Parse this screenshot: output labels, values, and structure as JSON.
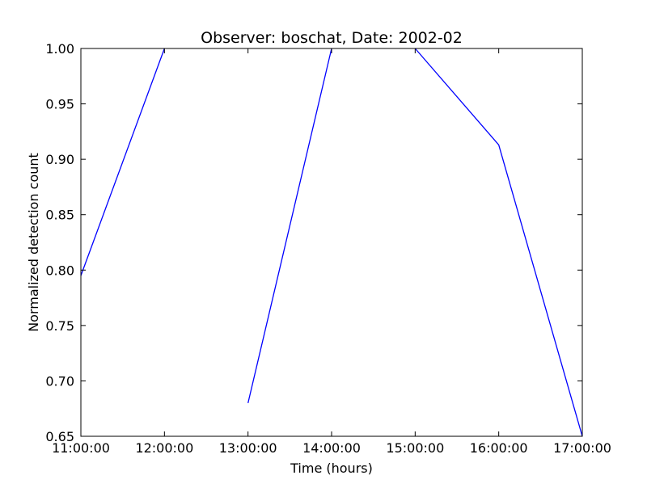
{
  "chart_data": {
    "type": "line",
    "title": "Observer: boschat, Date: 2002-02",
    "xlabel": "Time (hours)",
    "ylabel": "Normalized detection count",
    "x_ticks": [
      "11:00:00",
      "12:00:00",
      "13:00:00",
      "14:00:00",
      "15:00:00",
      "16:00:00",
      "17:00:00"
    ],
    "y_ticks": [
      "0.65",
      "0.70",
      "0.75",
      "0.80",
      "0.85",
      "0.90",
      "0.95",
      "1.00"
    ],
    "xlim": [
      "11:00:00",
      "17:00:00"
    ],
    "ylim": [
      0.65,
      1.0
    ],
    "grid": false,
    "series": [
      {
        "color": "#0000ff",
        "points": [
          {
            "x": "11:00:00",
            "y": 0.795
          },
          {
            "x": "12:00:00",
            "y": 1.0
          },
          {
            "x": "13:00:00",
            "y": null
          },
          {
            "x": "13:00:00",
            "y": 0.68
          },
          {
            "x": "14:00:00",
            "y": 1.0
          },
          {
            "x": "14:30:00",
            "y": null
          },
          {
            "x": "15:00:00",
            "y": 1.0
          },
          {
            "x": "16:00:00",
            "y": 0.913
          },
          {
            "x": "17:00:00",
            "y": 0.65
          }
        ]
      }
    ]
  }
}
